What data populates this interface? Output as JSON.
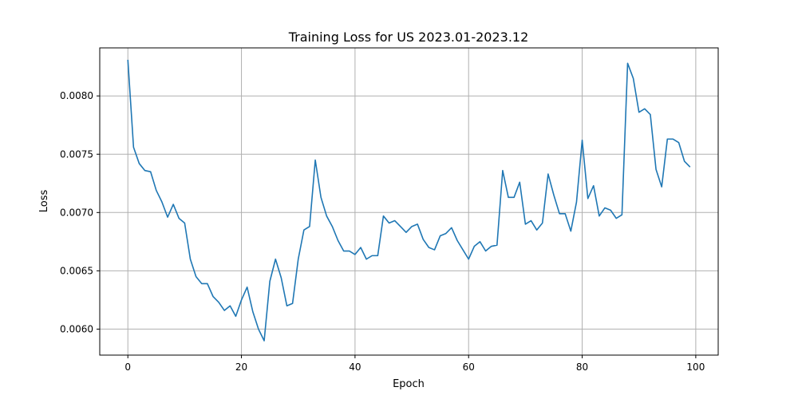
{
  "chart_data": {
    "type": "line",
    "title": "Training Loss for US 2023.01-2023.12",
    "xlabel": "Epoch",
    "ylabel": "Loss",
    "xlim": [
      -4.95,
      103.95
    ],
    "ylim": [
      0.005777,
      0.008412
    ],
    "grid": true,
    "legend": "none",
    "colors": {
      "line": "#1f77b4",
      "grid": "#b0b0b0"
    },
    "x_ticks": [
      0,
      20,
      40,
      60,
      80,
      100
    ],
    "x_tick_labels": [
      "0",
      "20",
      "40",
      "60",
      "80",
      "100"
    ],
    "y_ticks": [
      0.006,
      0.0065,
      0.007,
      0.0075,
      0.008
    ],
    "y_tick_labels": [
      "0.0060",
      "0.0065",
      "0.0070",
      "0.0075",
      "0.0080"
    ],
    "series": [
      {
        "color": "#1f77b4",
        "x": [
          0,
          1,
          2,
          3,
          4,
          5,
          6,
          7,
          8,
          9,
          10,
          11,
          12,
          13,
          14,
          15,
          16,
          17,
          18,
          19,
          20,
          21,
          22,
          23,
          24,
          25,
          26,
          27,
          28,
          29,
          30,
          31,
          32,
          33,
          34,
          35,
          36,
          37,
          38,
          39,
          40,
          41,
          42,
          43,
          44,
          45,
          46,
          47,
          48,
          49,
          50,
          51,
          52,
          53,
          54,
          55,
          56,
          57,
          58,
          59,
          60,
          61,
          62,
          63,
          64,
          65,
          66,
          67,
          68,
          69,
          70,
          71,
          72,
          73,
          74,
          75,
          76,
          77,
          78,
          79,
          80,
          81,
          82,
          83,
          84,
          85,
          86,
          87,
          88,
          89,
          90,
          91,
          92,
          93,
          94,
          95,
          96,
          97,
          98,
          99
        ],
        "y": [
          0.00831,
          0.00756,
          0.00742,
          0.00736,
          0.00735,
          0.00719,
          0.00709,
          0.00696,
          0.00707,
          0.00695,
          0.00691,
          0.0066,
          0.00645,
          0.00639,
          0.00639,
          0.00628,
          0.00623,
          0.00616,
          0.0062,
          0.00611,
          0.00625,
          0.00636,
          0.00615,
          0.006,
          0.0059,
          0.00641,
          0.0066,
          0.00644,
          0.0062,
          0.00622,
          0.0066,
          0.00685,
          0.00688,
          0.00745,
          0.00713,
          0.00697,
          0.00688,
          0.00676,
          0.00667,
          0.00667,
          0.00664,
          0.0067,
          0.0066,
          0.00663,
          0.00663,
          0.00697,
          0.00691,
          0.00693,
          0.00688,
          0.00683,
          0.00688,
          0.0069,
          0.00677,
          0.0067,
          0.00668,
          0.0068,
          0.00682,
          0.00687,
          0.00676,
          0.00668,
          0.0066,
          0.00671,
          0.00675,
          0.00667,
          0.00671,
          0.00672,
          0.00736,
          0.00713,
          0.00713,
          0.00726,
          0.0069,
          0.00693,
          0.00685,
          0.00691,
          0.00733,
          0.00715,
          0.00699,
          0.00699,
          0.00684,
          0.00709,
          0.00762,
          0.00712,
          0.00723,
          0.00697,
          0.00704,
          0.00702,
          0.00695,
          0.00698,
          0.00828,
          0.00815,
          0.00786,
          0.00789,
          0.00784,
          0.00737,
          0.00722,
          0.00763,
          0.00763,
          0.0076,
          0.00744,
          0.00739
        ]
      }
    ]
  }
}
